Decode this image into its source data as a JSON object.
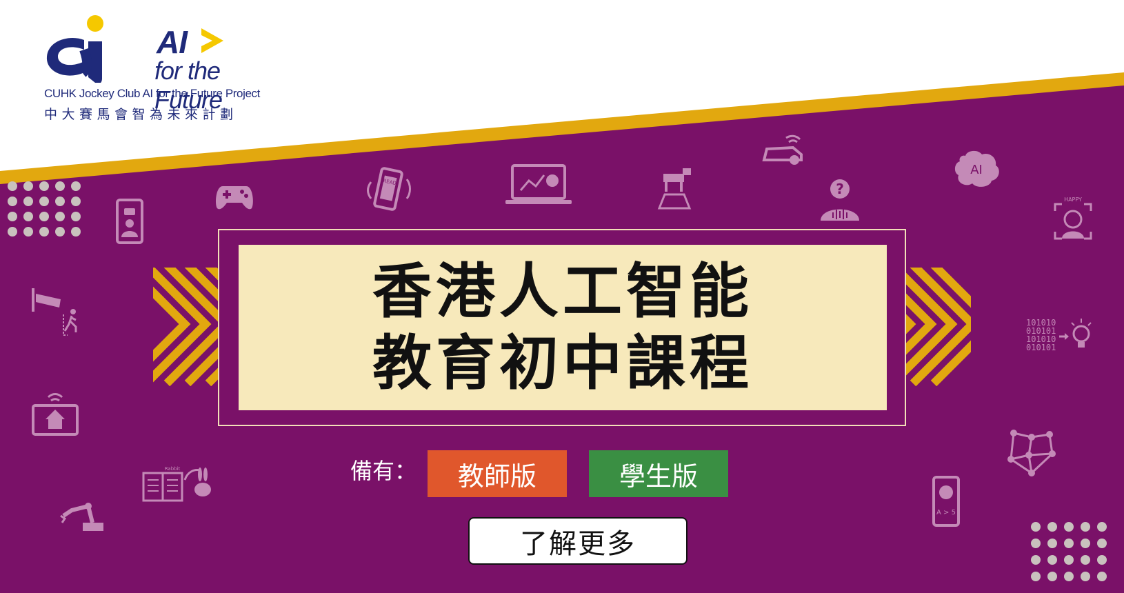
{
  "logo": {
    "title": "AI",
    "subtitle": "for the Future",
    "project_en": "CUHK Jockey Club AI for the Future Project",
    "project_zh": "中大賽馬會智為未來計劃"
  },
  "banner": {
    "title_line1": "香港人工智能",
    "title_line2": "教育初中課程",
    "happy_label": "HAPPY",
    "read_label": "READ",
    "rabbit_label": "Rabbit",
    "ai_brain_label": "AI",
    "binary_lines": [
      "101010",
      "010101",
      "101010",
      "010101"
    ],
    "translate_label": "A > 5"
  },
  "versions": {
    "label": "備有：",
    "teacher_button": "教師版",
    "student_button": "學生版"
  },
  "cta": {
    "learn_more": "了解更多"
  },
  "colors": {
    "purple_bg": "#7a1168",
    "gold_stripe": "#e2a80f",
    "title_panel": "#f7e9bb",
    "teacher_orange": "#e0572c",
    "student_green": "#3a8f43",
    "logo_navy": "#1f2a7a",
    "logo_yellow": "#f5c800"
  },
  "icons": [
    "dot-grid-icon",
    "phone-chat-icon",
    "gamepad-icon",
    "reading-phone-icon",
    "laptop-chart-icon",
    "robot-dog-icon",
    "self-driving-car-icon",
    "voice-question-icon",
    "ai-brain-icon",
    "emotion-recognition-icon",
    "surveillance-camera-icon",
    "binary-lightbulb-icon",
    "smart-home-icon",
    "story-book-icon",
    "robot-arm-icon",
    "neural-network-icon",
    "translation-phone-icon"
  ]
}
